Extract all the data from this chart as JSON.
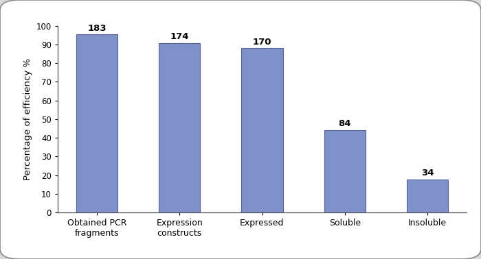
{
  "categories": [
    "Obtained PCR\nfragments",
    "Expression\nconstructs",
    "Expressed",
    "Soluble",
    "Insoluble"
  ],
  "values": [
    95.34,
    90.67,
    88.08,
    44.04,
    17.62
  ],
  "bar_labels": [
    "183",
    "174",
    "170",
    "84",
    "34"
  ],
  "bar_color": "#8090c8",
  "bar_edgecolor": "#5060a0",
  "ylabel": "Percentage of efficiency %",
  "ylim": [
    0,
    100
  ],
  "yticks": [
    0,
    10,
    20,
    30,
    40,
    50,
    60,
    70,
    80,
    90,
    100
  ],
  "label_fontsize": 9,
  "tick_fontsize": 8.5,
  "ylabel_fontsize": 9.5,
  "annotation_fontsize": 9.5,
  "bar_width": 0.5,
  "plot_bg": "#ffffff",
  "outer_bg": "#d8d8d8",
  "frame_bg": "#ffffff",
  "spine_color": "#555555"
}
